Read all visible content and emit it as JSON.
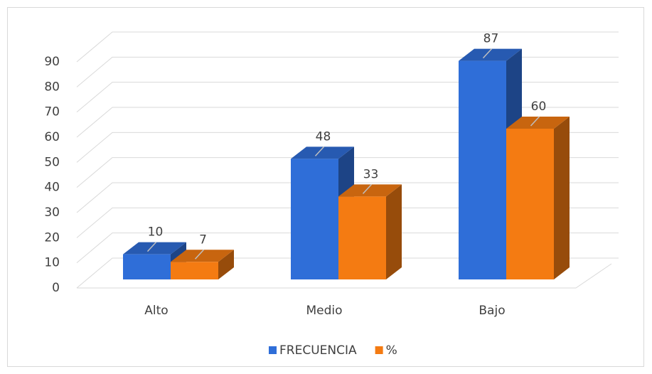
{
  "chart_data": {
    "type": "bar3d",
    "categories": [
      "Alto",
      "Medio",
      "Bajo"
    ],
    "series": [
      {
        "name": "FRECUENCIA",
        "color": "#2f6ed8",
        "values": [
          10,
          48,
          87
        ]
      },
      {
        "name": "%",
        "color": "#f47b12",
        "values": [
          7,
          33,
          60
        ]
      }
    ],
    "ylim": [
      0,
      90
    ],
    "yticks": [
      0,
      10,
      20,
      30,
      40,
      50,
      60,
      70,
      80,
      90
    ],
    "grid": true,
    "legend": "bottom"
  }
}
